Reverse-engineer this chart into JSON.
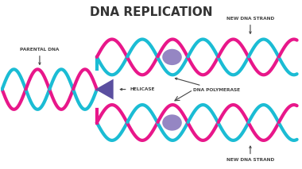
{
  "title": "DNA REPLICATION",
  "title_fontsize": 11,
  "title_fontweight": "bold",
  "title_color": "#333333",
  "cyan_color": "#1bbcd4",
  "magenta_color": "#e8178a",
  "purple_color": "#7b68b5",
  "rung_color": "#c8c8c8",
  "text_color": "#444444",
  "label_fontsize": 4.2,
  "label_fontweight": "bold",
  "helicase_color": "#5b4fa0",
  "labels": {
    "parental_dna": "PARENTAL DNA",
    "helicase": "HELICASE",
    "dna_polymerase": "DNA POLYMERASE",
    "new_dna_top": "NEW DNA STRAND",
    "new_dna_bottom": "NEW DNA STRAND"
  },
  "fig_w": 3.8,
  "fig_h": 2.13,
  "dpi": 100
}
